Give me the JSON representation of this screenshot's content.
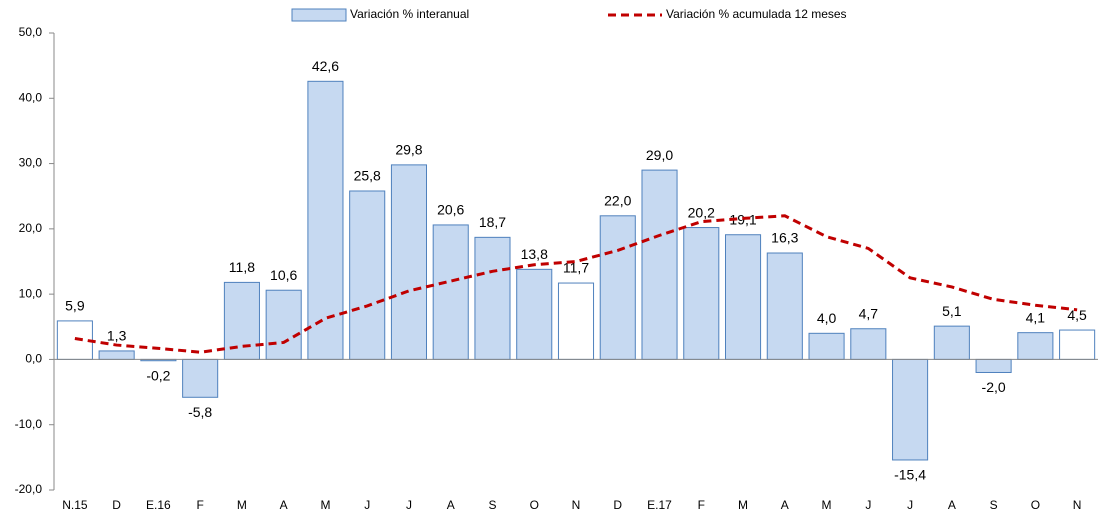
{
  "chart_data": {
    "type": "bar",
    "categories": [
      "N.15",
      "D",
      "E.16",
      "F",
      "M",
      "A",
      "M",
      "J",
      "J",
      "A",
      "S",
      "O",
      "N",
      "D",
      "E.17",
      "F",
      "M",
      "A",
      "M",
      "J",
      "J",
      "A",
      "S",
      "O",
      "N"
    ],
    "series": [
      {
        "name": "Variación % interanual",
        "type": "bar",
        "color": "#c6d9f1",
        "stroke": "#4f81bd",
        "colors": [
          "#ffffff",
          "#c6d9f1",
          "#c6d9f1",
          "#c6d9f1",
          "#c6d9f1",
          "#c6d9f1",
          "#c6d9f1",
          "#c6d9f1",
          "#c6d9f1",
          "#c6d9f1",
          "#c6d9f1",
          "#c6d9f1",
          "#ffffff",
          "#c6d9f1",
          "#c6d9f1",
          "#c6d9f1",
          "#c6d9f1",
          "#c6d9f1",
          "#c6d9f1",
          "#c6d9f1",
          "#c6d9f1",
          "#c6d9f1",
          "#c6d9f1",
          "#c6d9f1",
          "#ffffff"
        ],
        "values": [
          5.9,
          1.3,
          -0.2,
          -5.8,
          11.8,
          10.6,
          42.6,
          25.8,
          29.8,
          20.6,
          18.7,
          13.8,
          11.7,
          22.0,
          29.0,
          20.2,
          19.1,
          16.3,
          4.0,
          4.7,
          -15.4,
          5.1,
          -2.0,
          4.1,
          4.5
        ],
        "value_labels": [
          "5,9",
          "1,3",
          "-0,2",
          "-5,8",
          "11,8",
          "10,6",
          "42,6",
          "25,8",
          "29,8",
          "20,6",
          "18,7",
          "13,8",
          "11,7",
          "22,0",
          "29,0",
          "20,2",
          "19,1",
          "16,3",
          "4,0",
          "4,7",
          "-15,4",
          "5,1",
          "-2,0",
          "4,1",
          "4,5"
        ]
      },
      {
        "name": "Variación % acumulada 12 meses",
        "type": "line",
        "color": "#c00000",
        "values": [
          3.2,
          2.2,
          1.7,
          1.1,
          2.0,
          2.6,
          6.3,
          8.2,
          10.5,
          12.0,
          13.5,
          14.5,
          15.0,
          16.7,
          19.0,
          21.1,
          21.6,
          22.0,
          18.8,
          17.0,
          12.5,
          11.1,
          9.2,
          8.3,
          7.6
        ]
      }
    ],
    "ylim": [
      -20,
      50
    ],
    "yticks": [
      {
        "value": -20,
        "label": "-20,0"
      },
      {
        "value": -10,
        "label": "-10,0"
      },
      {
        "value": 0,
        "label": "0,0"
      },
      {
        "value": 10,
        "label": "10,0"
      },
      {
        "value": 20,
        "label": "20,0"
      },
      {
        "value": 30,
        "label": "30,0"
      },
      {
        "value": 40,
        "label": "40,0"
      },
      {
        "value": 50,
        "label": "50,0"
      }
    ],
    "legend": "top"
  }
}
